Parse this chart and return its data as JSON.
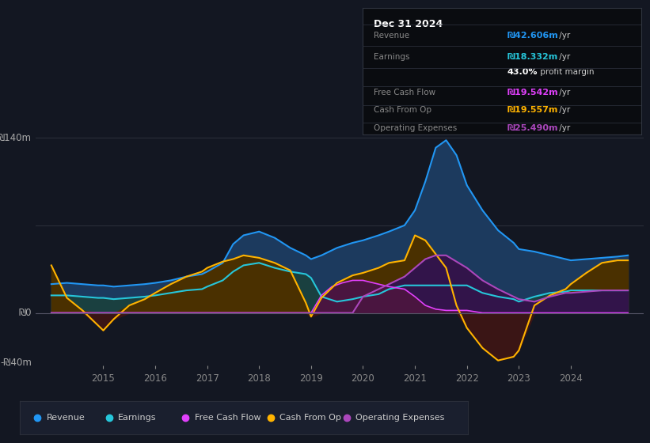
{
  "bg_color": "#131722",
  "chart_bg": "#131722",
  "grid_color": "#2a2e39",
  "zero_line_color": "#555555",
  "ylabel_top": "₪140m",
  "ylabel_zero": "₪0",
  "ylabel_bottom": "-₪40m",
  "ylim": [
    -42,
    158
  ],
  "xlim": [
    2013.7,
    2025.4
  ],
  "xtick_labels": [
    "2015",
    "2016",
    "2017",
    "2018",
    "2019",
    "2020",
    "2021",
    "2022",
    "2023",
    "2024"
  ],
  "xtick_positions": [
    2015,
    2016,
    2017,
    2018,
    2019,
    2020,
    2021,
    2022,
    2023,
    2024
  ],
  "revenue_color": "#2196f3",
  "revenue_fill": "#1c3a5e",
  "earnings_color": "#26c6da",
  "earnings_fill": "#1a4040",
  "fcf_color": "#e040fb",
  "fcf_fill": "#4a1540",
  "cashfromop_color": "#ffb300",
  "cashfromop_fill": "#4a3000",
  "cashfromop_neg_fill": "#3a1515",
  "opex_color": "#ab47bc",
  "opex_fill": "#32144a",
  "revenue_x": [
    2014.0,
    2014.3,
    2014.6,
    2014.9,
    2015.0,
    2015.2,
    2015.5,
    2015.8,
    2016.0,
    2016.3,
    2016.6,
    2016.9,
    2017.0,
    2017.3,
    2017.5,
    2017.7,
    2018.0,
    2018.3,
    2018.6,
    2018.9,
    2019.0,
    2019.2,
    2019.5,
    2019.8,
    2020.0,
    2020.3,
    2020.5,
    2020.8,
    2021.0,
    2021.2,
    2021.4,
    2021.6,
    2021.8,
    2022.0,
    2022.3,
    2022.6,
    2022.9,
    2023.0,
    2023.3,
    2023.6,
    2023.9,
    2024.0,
    2024.3,
    2024.6,
    2024.9,
    2025.1
  ],
  "revenue_y": [
    23,
    24,
    23,
    22,
    22,
    21,
    22,
    23,
    24,
    26,
    29,
    31,
    33,
    40,
    55,
    62,
    65,
    60,
    52,
    46,
    43,
    46,
    52,
    56,
    58,
    62,
    65,
    70,
    82,
    105,
    132,
    138,
    126,
    102,
    82,
    66,
    56,
    51,
    49,
    46,
    43,
    42,
    43,
    44,
    45,
    46
  ],
  "earnings_x": [
    2014.0,
    2014.3,
    2014.6,
    2014.9,
    2015.0,
    2015.2,
    2015.5,
    2015.8,
    2016.0,
    2016.3,
    2016.6,
    2016.9,
    2017.0,
    2017.3,
    2017.5,
    2017.7,
    2018.0,
    2018.3,
    2018.6,
    2018.9,
    2019.0,
    2019.2,
    2019.5,
    2019.8,
    2020.0,
    2020.3,
    2020.5,
    2020.8,
    2021.0,
    2021.2,
    2021.4,
    2021.6,
    2021.8,
    2022.0,
    2022.3,
    2022.6,
    2022.9,
    2023.0,
    2023.3,
    2023.6,
    2023.9,
    2024.0,
    2024.3,
    2024.6,
    2024.9,
    2025.1
  ],
  "earnings_y": [
    14,
    14,
    13,
    12,
    12,
    11,
    12,
    13,
    14,
    16,
    18,
    19,
    21,
    26,
    33,
    38,
    40,
    36,
    33,
    31,
    28,
    13,
    9,
    11,
    13,
    15,
    19,
    22,
    22,
    22,
    22,
    22,
    22,
    22,
    16,
    13,
    11,
    9,
    13,
    16,
    17,
    18,
    18,
    18,
    18,
    18
  ],
  "cashfromop_x": [
    2014.0,
    2014.3,
    2014.6,
    2014.9,
    2015.0,
    2015.2,
    2015.5,
    2015.8,
    2016.0,
    2016.3,
    2016.6,
    2016.9,
    2017.0,
    2017.3,
    2017.5,
    2017.7,
    2018.0,
    2018.3,
    2018.6,
    2018.9,
    2019.0,
    2019.2,
    2019.5,
    2019.8,
    2020.0,
    2020.3,
    2020.5,
    2020.8,
    2021.0,
    2021.2,
    2021.4,
    2021.6,
    2021.8,
    2022.0,
    2022.3,
    2022.6,
    2022.9,
    2023.0,
    2023.3,
    2023.6,
    2023.9,
    2024.0,
    2024.3,
    2024.6,
    2024.9,
    2025.1
  ],
  "cashfromop_y": [
    38,
    12,
    2,
    -10,
    -14,
    -5,
    6,
    11,
    16,
    23,
    29,
    33,
    36,
    41,
    43,
    46,
    44,
    40,
    34,
    8,
    -3,
    12,
    24,
    30,
    32,
    36,
    40,
    42,
    62,
    58,
    47,
    36,
    6,
    -12,
    -28,
    -38,
    -35,
    -30,
    6,
    14,
    19,
    23,
    32,
    40,
    42,
    42
  ],
  "opex_x": [
    2014.0,
    2014.3,
    2014.6,
    2014.9,
    2015.0,
    2015.2,
    2015.5,
    2015.8,
    2016.0,
    2016.3,
    2016.6,
    2016.9,
    2017.0,
    2017.3,
    2017.5,
    2017.7,
    2018.0,
    2018.3,
    2018.6,
    2018.9,
    2019.0,
    2019.2,
    2019.5,
    2019.8,
    2020.0,
    2020.3,
    2020.5,
    2020.8,
    2021.0,
    2021.2,
    2021.4,
    2021.6,
    2021.8,
    2022.0,
    2022.3,
    2022.6,
    2022.9,
    2023.0,
    2023.3,
    2023.6,
    2023.9,
    2024.0,
    2024.3,
    2024.6,
    2024.9,
    2025.1
  ],
  "opex_y": [
    0,
    0,
    0,
    0,
    0,
    0,
    0,
    0,
    0,
    0,
    0,
    0,
    0,
    0,
    0,
    0,
    0,
    0,
    0,
    0,
    0,
    0,
    0,
    0,
    13,
    19,
    23,
    29,
    36,
    43,
    46,
    46,
    41,
    36,
    26,
    19,
    13,
    11,
    9,
    13,
    16,
    16,
    17,
    18,
    18,
    18
  ],
  "fcf_x": [
    2014.0,
    2014.3,
    2014.6,
    2014.9,
    2015.0,
    2015.2,
    2015.5,
    2015.8,
    2016.0,
    2016.3,
    2016.6,
    2016.9,
    2017.0,
    2017.3,
    2017.5,
    2017.7,
    2018.0,
    2018.3,
    2018.6,
    2018.9,
    2019.0,
    2019.2,
    2019.4,
    2019.6,
    2019.8,
    2020.0,
    2020.3,
    2020.5,
    2020.8,
    2021.0,
    2021.2,
    2021.4,
    2021.6,
    2021.8,
    2022.0,
    2022.3,
    2022.6,
    2022.9,
    2023.0,
    2023.3,
    2023.6,
    2023.9,
    2024.0,
    2024.3,
    2024.6,
    2025.1
  ],
  "fcf_y": [
    0,
    0,
    0,
    0,
    0,
    0,
    0,
    0,
    0,
    0,
    0,
    0,
    0,
    0,
    0,
    0,
    0,
    0,
    0,
    0,
    0,
    14,
    21,
    24,
    26,
    26,
    23,
    21,
    19,
    13,
    6,
    3,
    2,
    2,
    2,
    0,
    0,
    0,
    0,
    0,
    0,
    0,
    0,
    0,
    0,
    0
  ],
  "tooltip_title": "Dec 31 2024",
  "legend_items": [
    {
      "label": "Revenue",
      "color": "#2196f3"
    },
    {
      "label": "Earnings",
      "color": "#26c6da"
    },
    {
      "label": "Free Cash Flow",
      "color": "#e040fb"
    },
    {
      "label": "Cash From Op",
      "color": "#ffb300"
    },
    {
      "label": "Operating Expenses",
      "color": "#ab47bc"
    }
  ]
}
